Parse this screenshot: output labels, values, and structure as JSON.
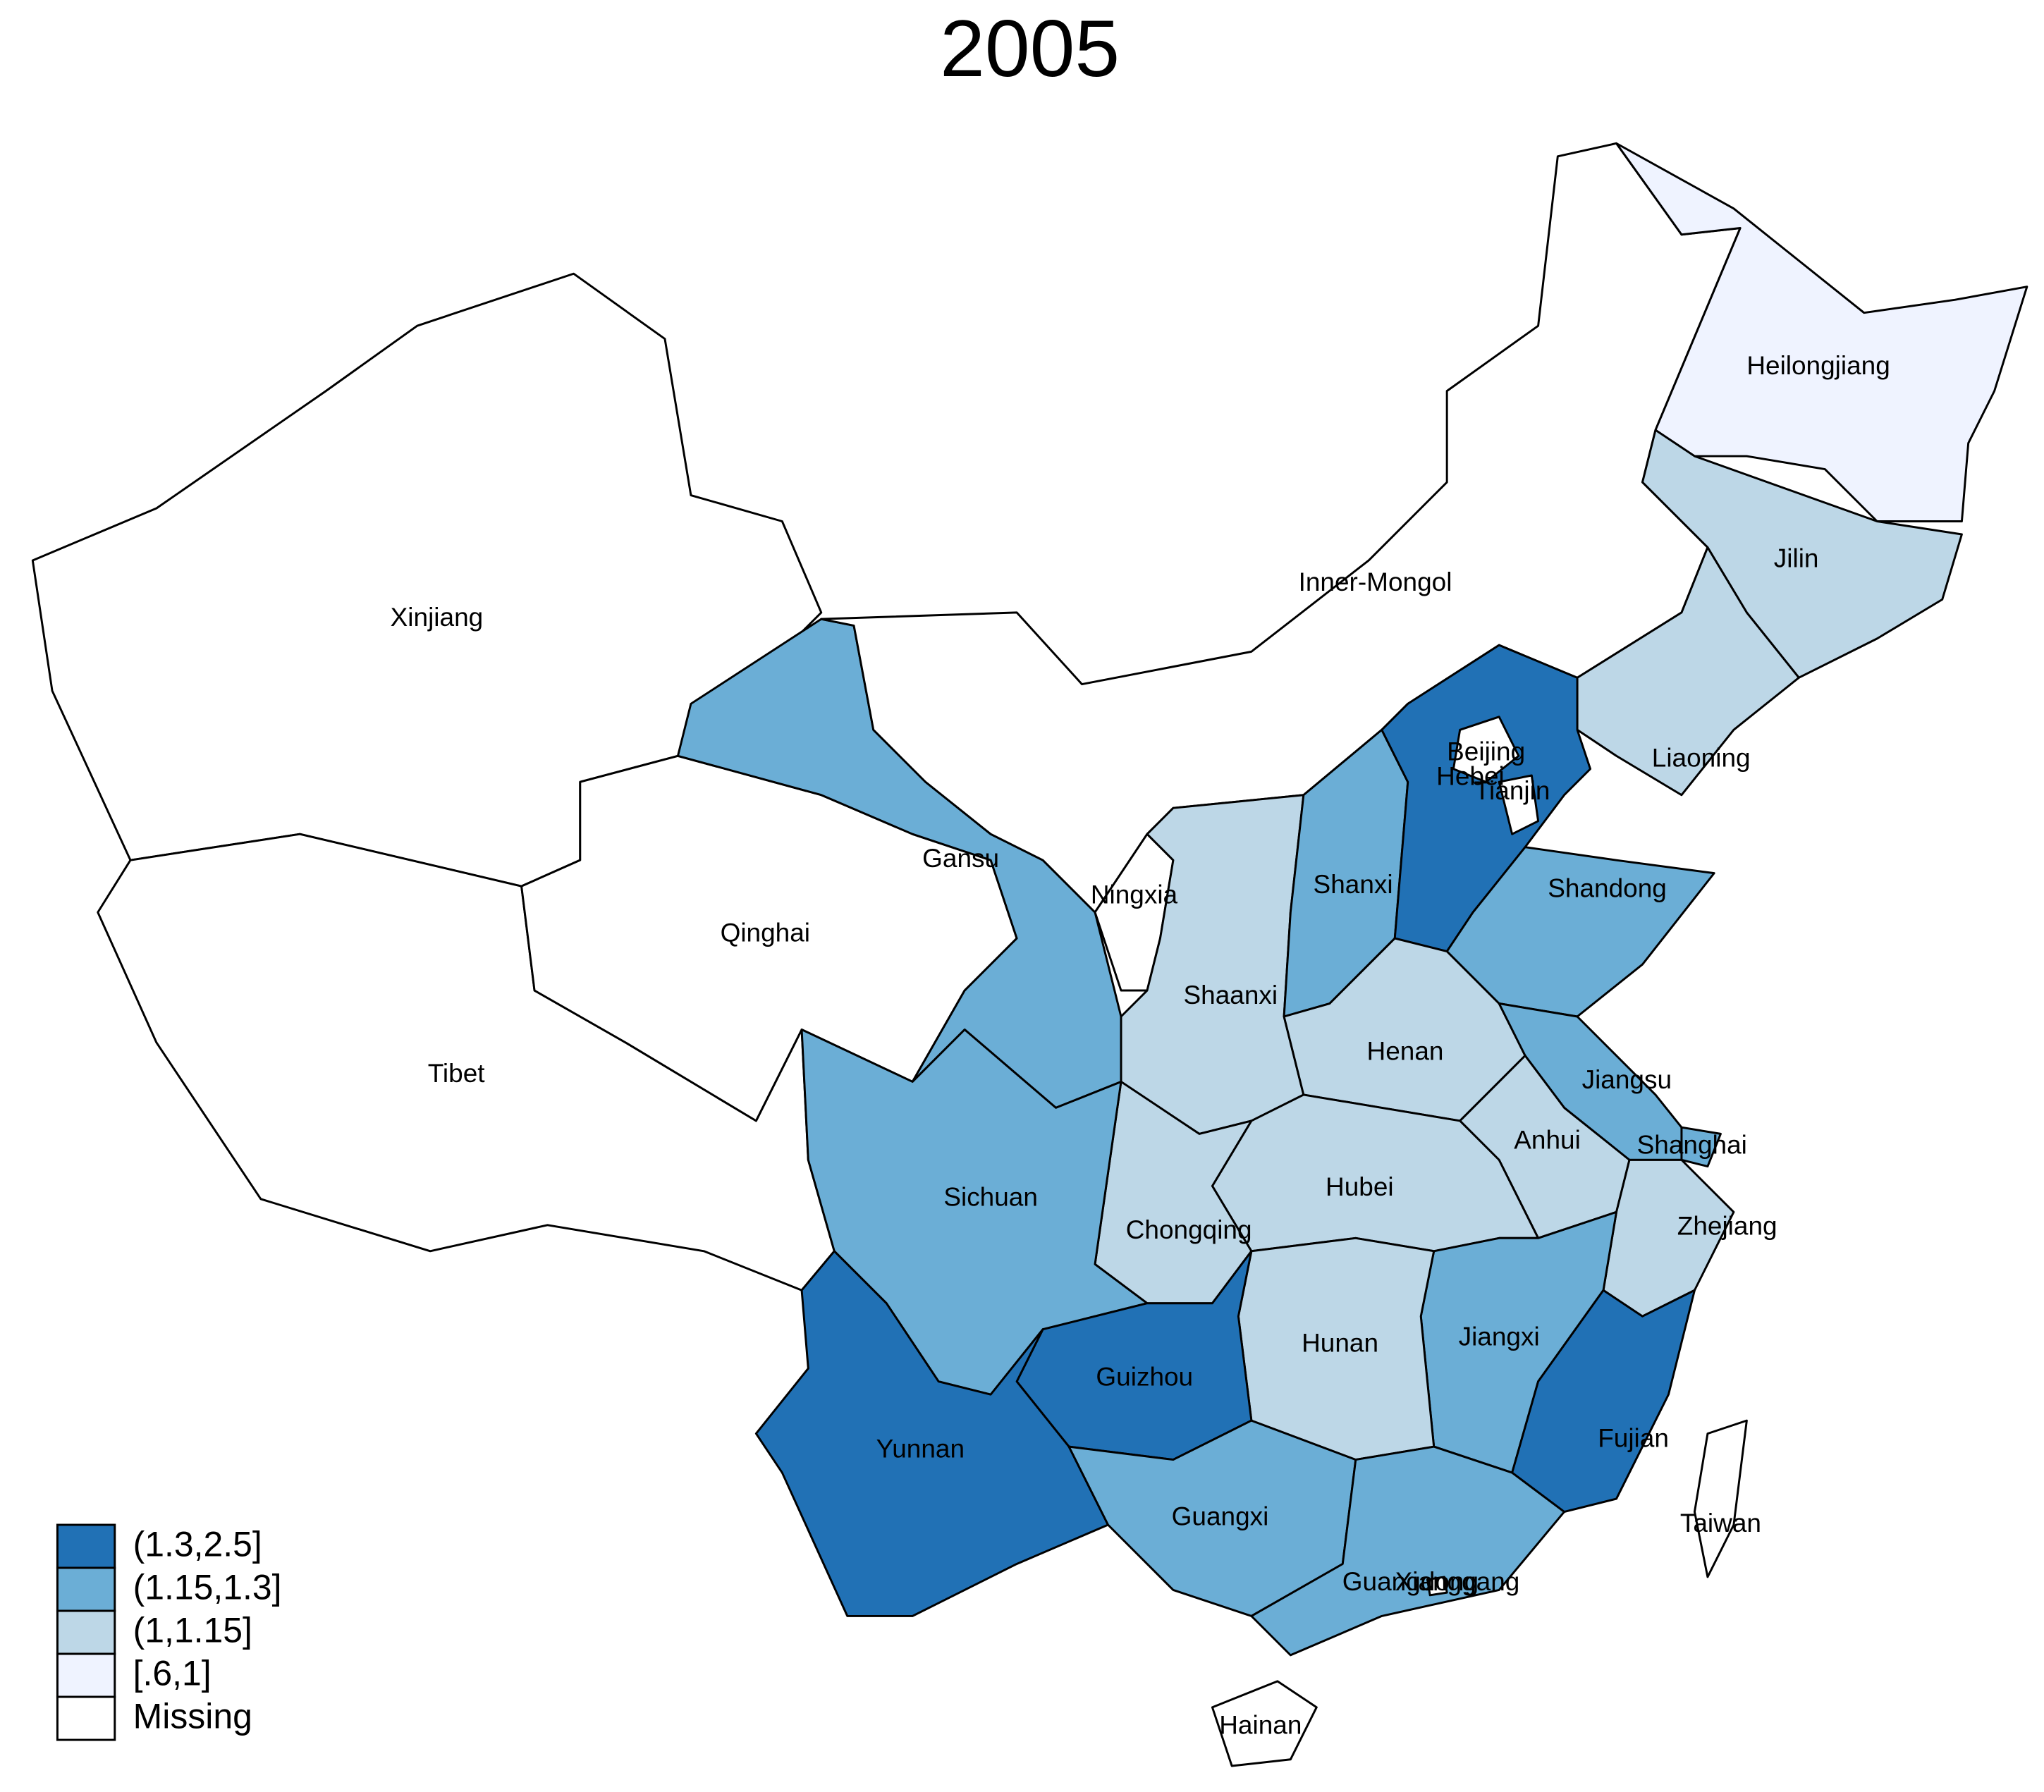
{
  "title": "2005",
  "legend": [
    {
      "label": "(1.3,2.5]",
      "color": "#2171b5"
    },
    {
      "label": "(1.15,1.3]",
      "color": "#6baed6"
    },
    {
      "label": "(1,1.15]",
      "color": "#bdd7e7"
    },
    {
      "label": "[.6,1]",
      "color": "#eff3ff"
    },
    {
      "label": "Missing",
      "color": "#ffffff"
    }
  ],
  "provinces": [
    {
      "name": "Xinjiang",
      "category": 4
    },
    {
      "name": "Tibet",
      "category": 4
    },
    {
      "name": "Qinghai",
      "category": 4
    },
    {
      "name": "Gansu",
      "category": 1
    },
    {
      "name": "Inner-Mongol",
      "category": 4
    },
    {
      "name": "Heilongjiang",
      "category": 3
    },
    {
      "name": "Jilin",
      "category": 2
    },
    {
      "name": "Liaoning",
      "category": 2
    },
    {
      "name": "Ningxia",
      "category": 4
    },
    {
      "name": "Shaanxi",
      "category": 2
    },
    {
      "name": "Shanxi",
      "category": 1
    },
    {
      "name": "Hebei",
      "category": 0
    },
    {
      "name": "Beijing",
      "category": 4
    },
    {
      "name": "Tianjin",
      "category": 4
    },
    {
      "name": "Shandong",
      "category": 1
    },
    {
      "name": "Henan",
      "category": 2
    },
    {
      "name": "Jiangsu",
      "category": 1
    },
    {
      "name": "Shanghai",
      "category": 1
    },
    {
      "name": "Anhui",
      "category": 2
    },
    {
      "name": "Hubei",
      "category": 2
    },
    {
      "name": "Chongqing",
      "category": 2
    },
    {
      "name": "Sichuan",
      "category": 1
    },
    {
      "name": "Zhejiang",
      "category": 2
    },
    {
      "name": "Jiangxi",
      "category": 1
    },
    {
      "name": "Hunan",
      "category": 2
    },
    {
      "name": "Guizhou",
      "category": 0
    },
    {
      "name": "Yunnan",
      "category": 0
    },
    {
      "name": "Fujian",
      "category": 0
    },
    {
      "name": "Guangxi",
      "category": 1
    },
    {
      "name": "Guangdong",
      "category": 1
    },
    {
      "name": "Xianggang",
      "category": 4
    },
    {
      "name": "Hainan",
      "category": 4
    },
    {
      "name": "Taiwan",
      "category": 4
    }
  ]
}
